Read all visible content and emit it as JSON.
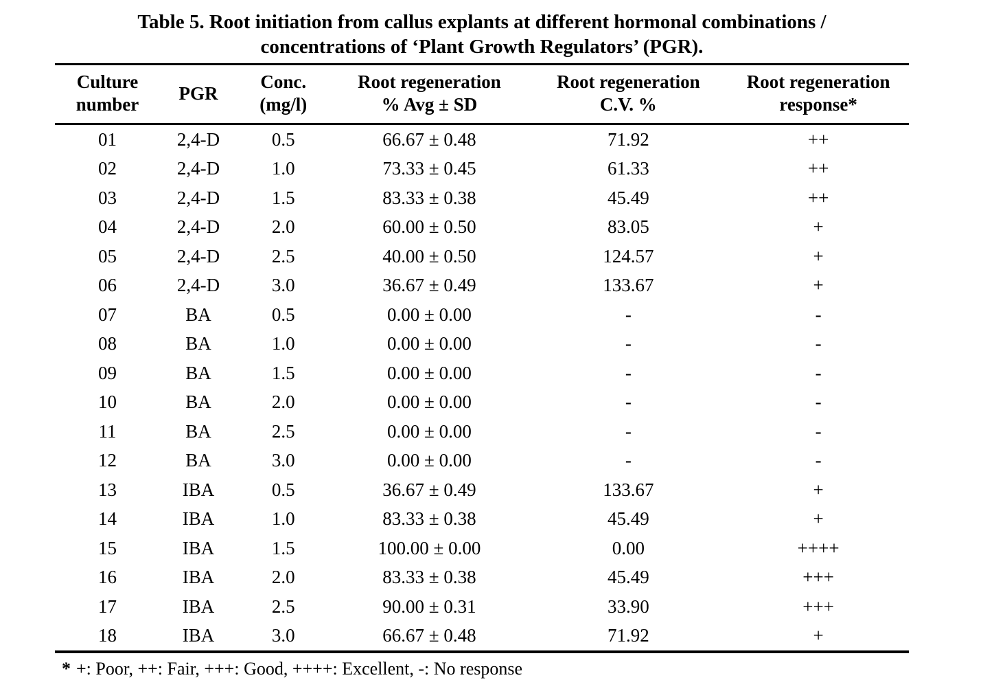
{
  "title": {
    "line1": "Table 5. Root initiation from callus explants at different hormonal combinations /",
    "line2": "concentrations of ‘Plant Growth Regulators’ (PGR)."
  },
  "table": {
    "columns": [
      {
        "id": "culture-number",
        "line1": "Culture",
        "line2": "number"
      },
      {
        "id": "pgr",
        "line1": "PGR",
        "line2": ""
      },
      {
        "id": "conc-mg-l",
        "line1": "Conc.",
        "line2": "(mg/l)"
      },
      {
        "id": "root-regeneration-avg-sd",
        "line1": "Root regeneration",
        "line2": "% Avg ± SD"
      },
      {
        "id": "root-regeneration-cv",
        "line1": "Root regeneration",
        "line2": "C.V. %"
      },
      {
        "id": "root-regeneration-response",
        "line1": "Root regeneration",
        "line2": "response*"
      }
    ],
    "rows": [
      [
        "01",
        "2,4-D",
        "0.5",
        "66.67 ± 0.48",
        "71.92",
        "++"
      ],
      [
        "02",
        "2,4-D",
        "1.0",
        "73.33 ± 0.45",
        "61.33",
        "++"
      ],
      [
        "03",
        "2,4-D",
        "1.5",
        "83.33 ± 0.38",
        "45.49",
        "++"
      ],
      [
        "04",
        "2,4-D",
        "2.0",
        "60.00 ± 0.50",
        "83.05",
        "+"
      ],
      [
        "05",
        "2,4-D",
        "2.5",
        "40.00 ± 0.50",
        "124.57",
        "+"
      ],
      [
        "06",
        "2,4-D",
        "3.0",
        "36.67 ± 0.49",
        "133.67",
        "+"
      ],
      [
        "07",
        "BA",
        "0.5",
        "0.00 ± 0.00",
        "-",
        "-"
      ],
      [
        "08",
        "BA",
        "1.0",
        "0.00 ± 0.00",
        "-",
        "-"
      ],
      [
        "09",
        "BA",
        "1.5",
        "0.00 ± 0.00",
        "-",
        "-"
      ],
      [
        "10",
        "BA",
        "2.0",
        "0.00 ± 0.00",
        "-",
        "-"
      ],
      [
        "11",
        "BA",
        "2.5",
        "0.00 ± 0.00",
        "-",
        "-"
      ],
      [
        "12",
        "BA",
        "3.0",
        "0.00 ± 0.00",
        "-",
        "-"
      ],
      [
        "13",
        "IBA",
        "0.5",
        "36.67 ± 0.49",
        "133.67",
        "+"
      ],
      [
        "14",
        "IBA",
        "1.0",
        "83.33 ± 0.38",
        "45.49",
        "+"
      ],
      [
        "15",
        "IBA",
        "1.5",
        "100.00 ± 0.00",
        "0.00",
        "++++"
      ],
      [
        "16",
        "IBA",
        "2.0",
        "83.33 ± 0.38",
        "45.49",
        "+++"
      ],
      [
        "17",
        "IBA",
        "2.5",
        "90.00 ± 0.31",
        "33.90",
        "+++"
      ],
      [
        "18",
        "IBA",
        "3.0",
        "66.67 ± 0.48",
        "71.92",
        "+"
      ]
    ]
  },
  "footnote": {
    "marker": "*",
    "text": "+: Poor, ++: Fair, +++: Good, ++++: Excellent, -: No response"
  },
  "colors": {
    "background": "#ffffff",
    "text": "#000000",
    "rule": "#000000"
  }
}
